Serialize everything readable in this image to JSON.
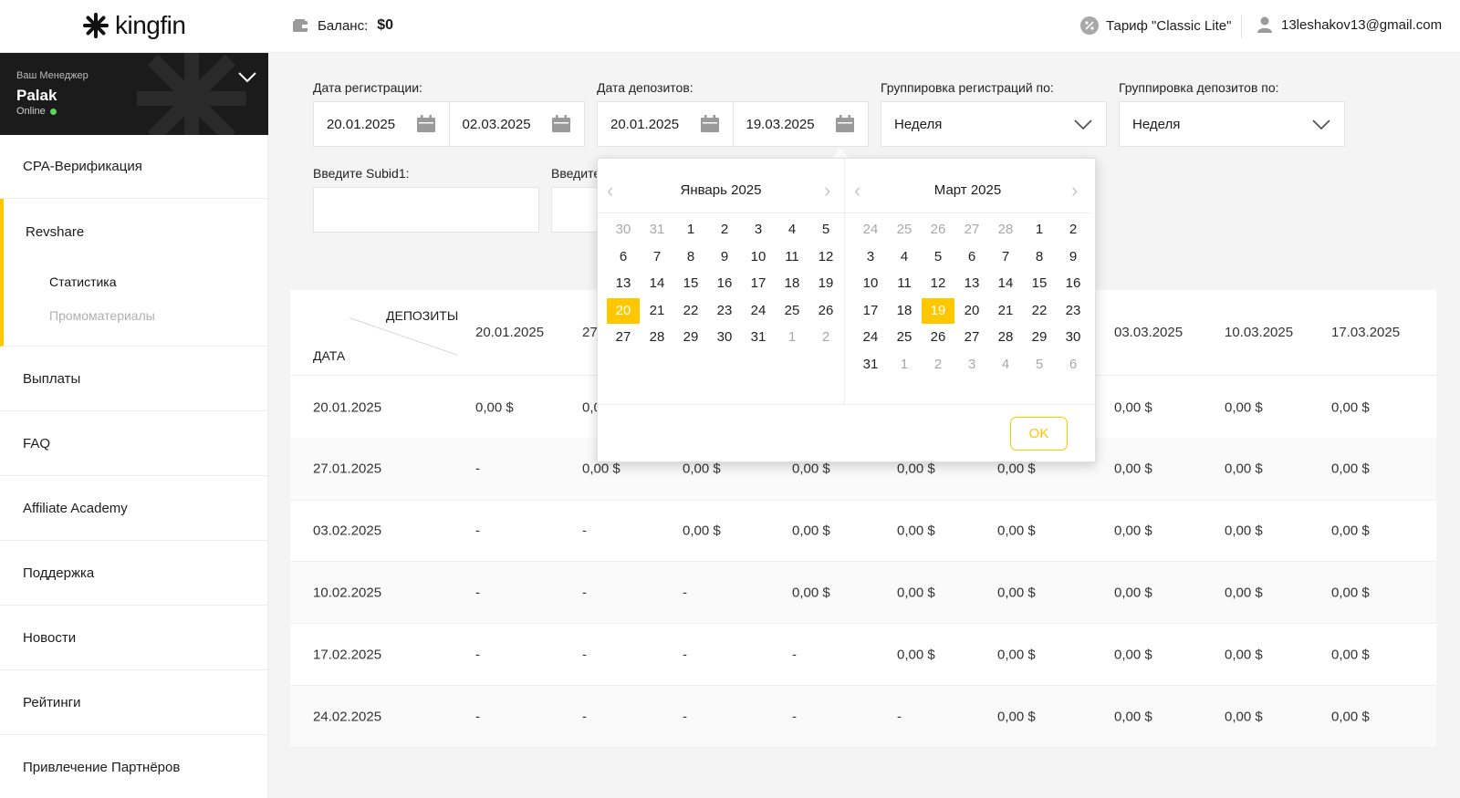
{
  "header": {
    "logo_text": "kingfin",
    "balance_label": "Баланс:",
    "balance_value": "$0",
    "tariff": "Тариф \"Classic Lite\"",
    "user_email": "13leshakov13@gmail.com"
  },
  "manager": {
    "label": "Ваш Менеджер",
    "name": "Palak",
    "status": "Online"
  },
  "sidebar": {
    "items": [
      {
        "label": "CPA-Верификация"
      },
      {
        "label": "Revshare"
      },
      {
        "label": "Выплаты"
      },
      {
        "label": "FAQ"
      },
      {
        "label": "Affiliate Academy"
      },
      {
        "label": "Поддержка"
      },
      {
        "label": "Новости"
      },
      {
        "label": "Рейтинги"
      },
      {
        "label": "Привлечение Партнёров"
      }
    ],
    "subitems": [
      {
        "label": "Статистика"
      },
      {
        "label": "Промоматериалы"
      }
    ]
  },
  "filters": {
    "reg_date_label": "Дата регистрации:",
    "reg_from": "20.01.2025",
    "reg_to": "02.03.2025",
    "dep_date_label": "Дата депозитов:",
    "dep_from": "20.01.2025",
    "dep_to": "19.03.2025",
    "reg_group_label": "Группировка регистраций по:",
    "reg_group_value": "Неделя",
    "dep_group_label": "Группировка депозитов по:",
    "dep_group_value": "Неделя",
    "subid1_label": "Введите Subid1:",
    "subid2_label_partial": "Введите"
  },
  "table": {
    "corner_top": "ДЕПОЗИТЫ",
    "corner_bottom": "ДАТА",
    "columns": [
      "20.01.2025",
      "27",
      "",
      "",
      "",
      "",
      "03.03.2025",
      "10.03.2025",
      "17.03.2025"
    ],
    "rows": [
      {
        "date": "20.01.2025",
        "cells": [
          "0,00 $",
          "0,0",
          "",
          "",
          "",
          "",
          "0,00 $",
          "0,00 $",
          "0,00 $"
        ]
      },
      {
        "date": "27.01.2025",
        "cells": [
          "-",
          "0,00 $",
          "0,00 $",
          "0,00 $",
          "0,00 $",
          "0,00 $",
          "0,00 $",
          "0,00 $",
          "0,00 $"
        ]
      },
      {
        "date": "03.02.2025",
        "cells": [
          "-",
          "-",
          "0,00 $",
          "0,00 $",
          "0,00 $",
          "0,00 $",
          "0,00 $",
          "0,00 $",
          "0,00 $"
        ]
      },
      {
        "date": "10.02.2025",
        "cells": [
          "-",
          "-",
          "-",
          "0,00 $",
          "0,00 $",
          "0,00 $",
          "0,00 $",
          "0,00 $",
          "0,00 $"
        ]
      },
      {
        "date": "17.02.2025",
        "cells": [
          "-",
          "-",
          "-",
          "-",
          "0,00 $",
          "0,00 $",
          "0,00 $",
          "0,00 $",
          "0,00 $"
        ]
      },
      {
        "date": "24.02.2025",
        "cells": [
          "-",
          "-",
          "-",
          "-",
          "-",
          "0,00 $",
          "0,00 $",
          "0,00 $",
          "0,00 $"
        ]
      }
    ]
  },
  "datepicker": {
    "left_title": "Январь 2025",
    "right_title": "Март 2025",
    "ok_label": "OK",
    "left_weeks": [
      [
        [
          "30",
          1
        ],
        [
          "31",
          1
        ],
        [
          "1",
          0
        ],
        [
          "2",
          0
        ],
        [
          "3",
          0
        ],
        [
          "4",
          0
        ],
        [
          "5",
          0
        ]
      ],
      [
        [
          "6",
          0
        ],
        [
          "7",
          0
        ],
        [
          "8",
          0
        ],
        [
          "9",
          0
        ],
        [
          "10",
          0
        ],
        [
          "11",
          0
        ],
        [
          "12",
          0
        ]
      ],
      [
        [
          "13",
          0
        ],
        [
          "14",
          0
        ],
        [
          "15",
          0
        ],
        [
          "16",
          0
        ],
        [
          "17",
          0
        ],
        [
          "18",
          0
        ],
        [
          "19",
          0
        ]
      ],
      [
        [
          "20",
          2
        ],
        [
          "21",
          0
        ],
        [
          "22",
          0
        ],
        [
          "23",
          0
        ],
        [
          "24",
          0
        ],
        [
          "25",
          0
        ],
        [
          "26",
          0
        ]
      ],
      [
        [
          "27",
          0
        ],
        [
          "28",
          0
        ],
        [
          "29",
          0
        ],
        [
          "30",
          0
        ],
        [
          "31",
          0
        ],
        [
          "1",
          1
        ],
        [
          "2",
          1
        ]
      ]
    ],
    "right_weeks": [
      [
        [
          "24",
          1
        ],
        [
          "25",
          1
        ],
        [
          "26",
          1
        ],
        [
          "27",
          1
        ],
        [
          "28",
          1
        ],
        [
          "1",
          0
        ],
        [
          "2",
          0
        ]
      ],
      [
        [
          "3",
          0
        ],
        [
          "4",
          0
        ],
        [
          "5",
          0
        ],
        [
          "6",
          0
        ],
        [
          "7",
          0
        ],
        [
          "8",
          0
        ],
        [
          "9",
          0
        ]
      ],
      [
        [
          "10",
          0
        ],
        [
          "11",
          0
        ],
        [
          "12",
          0
        ],
        [
          "13",
          0
        ],
        [
          "14",
          0
        ],
        [
          "15",
          0
        ],
        [
          "16",
          0
        ]
      ],
      [
        [
          "17",
          0
        ],
        [
          "18",
          0
        ],
        [
          "19",
          2
        ],
        [
          "20",
          0
        ],
        [
          "21",
          0
        ],
        [
          "22",
          0
        ],
        [
          "23",
          0
        ]
      ],
      [
        [
          "24",
          0
        ],
        [
          "25",
          0
        ],
        [
          "26",
          0
        ],
        [
          "27",
          0
        ],
        [
          "28",
          0
        ],
        [
          "29",
          0
        ],
        [
          "30",
          0
        ]
      ],
      [
        [
          "31",
          0
        ],
        [
          "1",
          1
        ],
        [
          "2",
          1
        ],
        [
          "3",
          1
        ],
        [
          "4",
          1
        ],
        [
          "5",
          1
        ],
        [
          "6",
          1
        ]
      ]
    ]
  },
  "colors": {
    "accent": "#ffc700",
    "online": "#5fd35f"
  }
}
